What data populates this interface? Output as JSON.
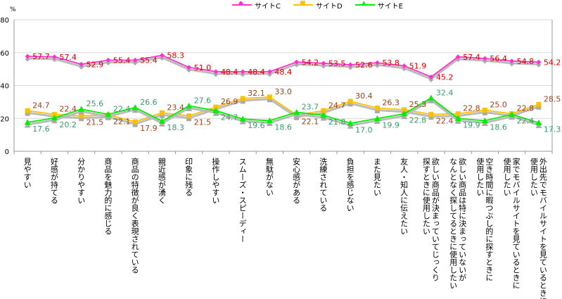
{
  "chart_data": {
    "type": "line",
    "ylabel": "%",
    "ylim": [
      0,
      80
    ],
    "yticks": [
      0,
      20,
      40,
      60,
      80
    ],
    "grid": true,
    "legend_position": "top",
    "categories": [
      "見やすい",
      "好感が持てる",
      "分かりやすい",
      "商品を魅力的に感じる",
      "商品の特徴が良く表現されている",
      "親近感が湧く",
      "印象に残る",
      "操作しやすい",
      "スムーズ・スピーディー",
      "無駄がない",
      "安心感がある",
      "洗練されている",
      "負担を感じない",
      "また見たい",
      "友人・知人に伝えたい",
      "欲しい商品が決まっていてじっくり\n探すときに使用したい",
      "欲しい商品は特に決まっていないが\nなんとなく探してるときに使用したい",
      "空き時間に暇つぶし的に探すときに\n使用したい",
      "家でモバイルサイトを見ているときに\n使用したい",
      "外出先でモバイルサイトを見ているときに\n使用したい"
    ],
    "series": [
      {
        "name": "サイトC",
        "color": "#ff33cc",
        "label_color": "#e00000",
        "marker": "diamond",
        "values": [
          57.7,
          57.4,
          52.9,
          55.4,
          55.4,
          58.3,
          51.0,
          48.4,
          48.4,
          48.4,
          54.2,
          53.5,
          52.6,
          53.8,
          51.9,
          45.2,
          57.4,
          56.4,
          54.8,
          54.2
        ]
      },
      {
        "name": "サイトD",
        "color": "#ffc000",
        "label_color": "#a0401a",
        "marker": "square",
        "values": [
          24.7,
          22.4,
          21.5,
          22.1,
          17.9,
          23.4,
          21.5,
          26.9,
          32.1,
          33.0,
          22.1,
          24.7,
          30.4,
          26.3,
          25.3,
          22.4,
          22.8,
          25.0,
          22.8,
          28.5
        ]
      },
      {
        "name": "サイトE",
        "color": "#00ee00",
        "label_color": "#3a9a6a",
        "marker": "triangle",
        "values": [
          17.6,
          20.2,
          25.6,
          22.4,
          26.6,
          18.3,
          27.6,
          24.7,
          19.6,
          18.6,
          23.7,
          21.8,
          17.0,
          19.9,
          22.8,
          32.4,
          19.9,
          18.6,
          22.4,
          17.3
        ]
      }
    ]
  }
}
